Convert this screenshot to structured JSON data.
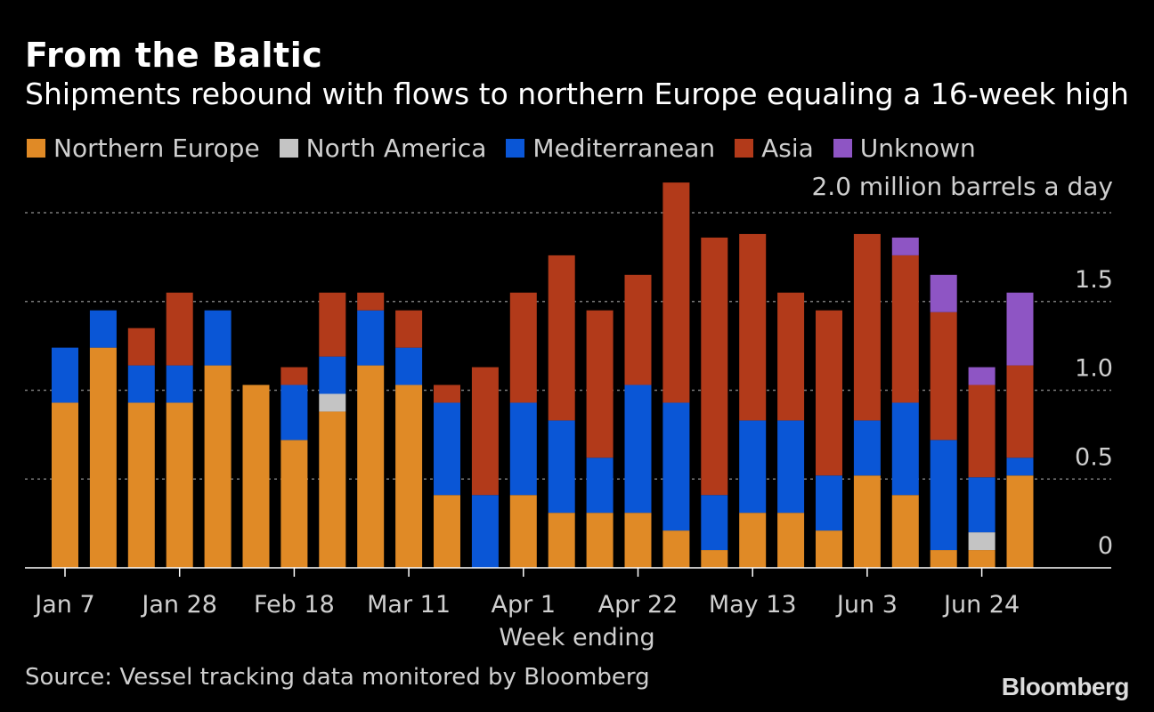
{
  "header": {
    "title": "From the Baltic",
    "subtitle": "Shipments rebound with flows to northern Europe equaling a 16-week high"
  },
  "legend": [
    {
      "label": "Northern Europe",
      "color": "#e08a26"
    },
    {
      "label": "North America",
      "color": "#c4c4c4"
    },
    {
      "label": "Mediterranean",
      "color": "#0a56d6"
    },
    {
      "label": "Asia",
      "color": "#b23a1a"
    },
    {
      "label": "Unknown",
      "color": "#8e55c4"
    }
  ],
  "unit_label": "2.0 million barrels a day",
  "source": "Source: Vessel tracking data monitored by Bloomberg",
  "brand": "Bloomberg",
  "chart_data": {
    "type": "bar",
    "stacked": true,
    "xlabel": "Week ending",
    "ylim": [
      0,
      2.0
    ],
    "yticks": [
      0,
      0.5,
      1.0,
      1.5,
      2.0
    ],
    "ytick_labels": [
      "0",
      "0.5",
      "1.0",
      "1.5",
      "2.0 million barrels a day"
    ],
    "y_axis_side": "right",
    "grid": true,
    "legend_position": "top",
    "xtick_labels": [
      {
        "index": 0,
        "label": "Jan 7"
      },
      {
        "index": 3,
        "label": "Jan 28"
      },
      {
        "index": 6,
        "label": "Feb 18"
      },
      {
        "index": 9,
        "label": "Mar 11"
      },
      {
        "index": 12,
        "label": "Apr 1"
      },
      {
        "index": 15,
        "label": "Apr 22"
      },
      {
        "index": 18,
        "label": "May 13"
      },
      {
        "index": 21,
        "label": "Jun 3"
      },
      {
        "index": 24,
        "label": "Jun 24"
      }
    ],
    "series": [
      {
        "name": "Northern Europe",
        "color": "#e08a26",
        "values": [
          0.93,
          1.24,
          0.93,
          0.93,
          1.14,
          1.03,
          0.72,
          0.88,
          1.14,
          1.03,
          0.41,
          0,
          0.41,
          0.31,
          0.31,
          0.31,
          0.21,
          0.1,
          0.31,
          0.31,
          0.21,
          0.52,
          0.41,
          0.1,
          0.1,
          0.52
        ]
      },
      {
        "name": "North America",
        "color": "#c4c4c4",
        "values": [
          0,
          0,
          0,
          0,
          0,
          0,
          0,
          0.1,
          0,
          0,
          0,
          0,
          0,
          0,
          0,
          0,
          0,
          0,
          0,
          0,
          0,
          0,
          0,
          0,
          0.1,
          0
        ]
      },
      {
        "name": "Mediterranean",
        "color": "#0a56d6",
        "values": [
          0.31,
          0.21,
          0.21,
          0.21,
          0.31,
          0,
          0.31,
          0.21,
          0.31,
          0.21,
          0.52,
          0.41,
          0.52,
          0.52,
          0.31,
          0.72,
          0.72,
          0.31,
          0.52,
          0.52,
          0.31,
          0.31,
          0.52,
          0.62,
          0.31,
          0.1
        ]
      },
      {
        "name": "Asia",
        "color": "#b23a1a",
        "values": [
          0,
          0,
          0.21,
          0.41,
          0,
          0,
          0.1,
          0.36,
          0.1,
          0.21,
          0.1,
          0.72,
          0.62,
          0.93,
          0.83,
          0.62,
          1.24,
          1.45,
          1.05,
          0.72,
          0.93,
          1.05,
          0.83,
          0.72,
          0.52,
          0.52
        ]
      },
      {
        "name": "Unknown",
        "color": "#8e55c4",
        "values": [
          0,
          0,
          0,
          0,
          0,
          0,
          0,
          0,
          0,
          0,
          0,
          0,
          0,
          0,
          0,
          0,
          0,
          0,
          0,
          0,
          0,
          0,
          0.1,
          0.21,
          0.1,
          0.41
        ]
      }
    ]
  }
}
